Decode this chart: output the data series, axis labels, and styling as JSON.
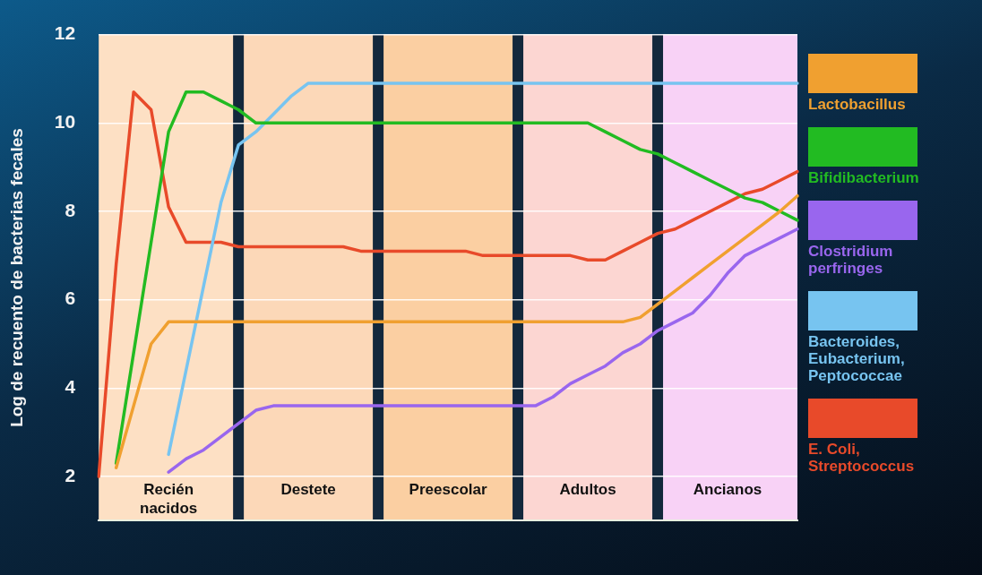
{
  "chart_data": {
    "type": "line",
    "ylabel": "Log de recuento de bacterias fecales",
    "categories": [
      null,
      null,
      null,
      null,
      "Recién nacidos",
      null,
      null,
      null,
      null,
      null,
      null,
      null,
      "Destete",
      null,
      null,
      null,
      null,
      null,
      null,
      null,
      "Preescolar",
      null,
      null,
      null,
      null,
      null,
      null,
      null,
      "Adultos",
      null,
      null,
      null,
      null,
      null,
      null,
      null,
      "Ancianos",
      null,
      null,
      null,
      null
    ],
    "ylim": [
      1,
      12
    ],
    "yticks": [
      2,
      4,
      6,
      8,
      10,
      12
    ],
    "grid": "y",
    "legend": "right",
    "marker": "none",
    "line_style": "solid",
    "series": [
      {
        "name": "Lactobacillus",
        "color": "#f0a030",
        "values": [
          null,
          2.2,
          3.6,
          5,
          5.5,
          5.5,
          5.5,
          5.5,
          5.5,
          5.5,
          5.5,
          5.5,
          5.5,
          5.5,
          5.5,
          5.5,
          5.5,
          5.5,
          5.5,
          5.5,
          5.5,
          5.5,
          5.5,
          5.5,
          5.5,
          5.5,
          5.5,
          5.5,
          5.5,
          5.5,
          5.5,
          5.6,
          5.9,
          6.2,
          6.5,
          6.8,
          7.1,
          7.4,
          7.7,
          8,
          8.35
        ]
      },
      {
        "name": "Bifidibacterium",
        "color": "#22bb22",
        "values": [
          null,
          2.3,
          4.8,
          7.3,
          9.8,
          10.7,
          10.7,
          10.5,
          10.3,
          10,
          10,
          10,
          10,
          10,
          10,
          10,
          10,
          10,
          10,
          10,
          10,
          10,
          10,
          10,
          10,
          10,
          10,
          10,
          10,
          9.8,
          9.6,
          9.4,
          9.3,
          9.1,
          8.9,
          8.7,
          8.5,
          8.3,
          8.2,
          8,
          7.8
        ]
      },
      {
        "name": "Clostridium perfringes",
        "color": "#9966ee",
        "values": [
          null,
          null,
          null,
          null,
          2.1,
          2.4,
          2.6,
          2.9,
          3.2,
          3.5,
          3.6,
          3.6,
          3.6,
          3.6,
          3.6,
          3.6,
          3.6,
          3.6,
          3.6,
          3.6,
          3.6,
          3.6,
          3.6,
          3.6,
          3.6,
          3.6,
          3.8,
          4.1,
          4.3,
          4.5,
          4.8,
          5,
          5.3,
          5.5,
          5.7,
          6.1,
          6.6,
          7,
          7.2,
          7.4,
          7.6
        ]
      },
      {
        "name": "Bacteroides, Eubacterium, Peptococcae",
        "color": "#77c4f0",
        "values": [
          null,
          null,
          null,
          null,
          2.5,
          4.4,
          6.3,
          8.2,
          9.5,
          9.8,
          10.2,
          10.6,
          10.9,
          10.9,
          10.9,
          10.9,
          10.9,
          10.9,
          10.9,
          10.9,
          10.9,
          10.9,
          10.9,
          10.9,
          10.9,
          10.9,
          10.9,
          10.9,
          10.9,
          10.9,
          10.9,
          10.9,
          10.9,
          10.9,
          10.9,
          10.9,
          10.9,
          10.9,
          10.9,
          10.9,
          10.9
        ]
      },
      {
        "name": "E. Coli, Streptococcus",
        "color": "#e84a2a",
        "values": [
          2,
          6.8,
          10.7,
          10.3,
          8.1,
          7.3,
          7.3,
          7.3,
          7.2,
          7.2,
          7.2,
          7.2,
          7.2,
          7.2,
          7.2,
          7.1,
          7.1,
          7.1,
          7.1,
          7.1,
          7.1,
          7.1,
          7,
          7,
          7,
          7,
          7,
          7,
          6.9,
          6.9,
          7.1,
          7.3,
          7.5,
          7.6,
          7.8,
          8,
          8.2,
          8.4,
          8.5,
          8.7,
          8.9
        ]
      }
    ]
  }
}
